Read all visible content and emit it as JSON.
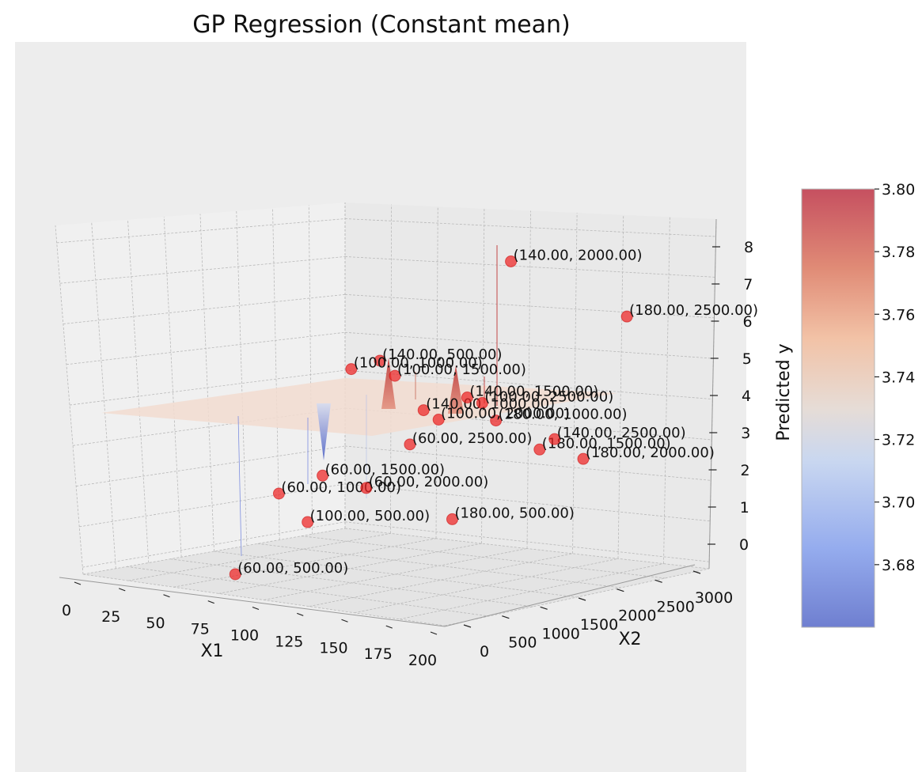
{
  "chart_data": {
    "type": "scatter",
    "subtype": "3d-surface-with-scatter",
    "title": "GP Regression (Constant mean)",
    "xlabel": "X1",
    "ylabel": "X2",
    "zlabel": "",
    "colorbar_label": "Predicted y",
    "colormap": "coolwarm",
    "grid": true,
    "xlim": [
      0,
      200
    ],
    "ylim": [
      0,
      3000
    ],
    "zlim": [
      0,
      8
    ],
    "x_ticks": [
      "0",
      "25",
      "50",
      "75",
      "100",
      "125",
      "150",
      "175",
      "200"
    ],
    "y_ticks": [
      "0",
      "500",
      "1000",
      "1500",
      "2000",
      "2500",
      "3000"
    ],
    "z_ticks": [
      "0",
      "1",
      "2",
      "3",
      "4",
      "5",
      "6",
      "7",
      "8"
    ],
    "colorbar_range": [
      3.66,
      3.8
    ],
    "colorbar_ticks": [
      "3.68",
      "3.70",
      "3.72",
      "3.74",
      "3.76",
      "3.78",
      "3.80"
    ],
    "surface_level": 3.74,
    "points": [
      {
        "x": 140,
        "y": 2000,
        "z": 8.5,
        "label": "(140.00, 2000.00)"
      },
      {
        "x": 180,
        "y": 2500,
        "z": 7.2,
        "label": "(180.00, 2500.00)"
      },
      {
        "x": 140,
        "y": 500,
        "z": 6.2,
        "label": "(140.00, 500.00)"
      },
      {
        "x": 100,
        "y": 1000,
        "z": 5.6,
        "label": "(100.00, 1000.00)"
      },
      {
        "x": 100,
        "y": 1500,
        "z": 5.3,
        "label": "(100.00, 1500.00)"
      },
      {
        "x": 140,
        "y": 1000,
        "z": 4.8,
        "label": "(140.00, 1000.00)"
      },
      {
        "x": 140,
        "y": 1500,
        "z": 5.0,
        "label": "(140.00, 1500.00)"
      },
      {
        "x": 180,
        "y": 1000,
        "z": 4.8,
        "label": "(180.00, 1000.00)"
      },
      {
        "x": 100,
        "y": 2500,
        "z": 4.3,
        "label": "(100.00, 2500.00)"
      },
      {
        "x": 100,
        "y": 2000,
        "z": 4.0,
        "label": "(100.00, 2000.00)"
      },
      {
        "x": 180,
        "y": 1500,
        "z": 3.9,
        "label": "(180.00, 1500.00)"
      },
      {
        "x": 140,
        "y": 2500,
        "z": 3.6,
        "label": "(140.00, 2500.00)"
      },
      {
        "x": 180,
        "y": 2000,
        "z": 3.5,
        "label": "(180.00, 2000.00)"
      },
      {
        "x": 60,
        "y": 2500,
        "z": 2.9,
        "label": "(60.00, 2500.00)"
      },
      {
        "x": 180,
        "y": 500,
        "z": 2.4,
        "label": "(180.00, 500.00)"
      },
      {
        "x": 60,
        "y": 1500,
        "z": 2.4,
        "label": "(60.00, 1500.00)"
      },
      {
        "x": 60,
        "y": 1000,
        "z": 2.1,
        "label": "(60.00, 1000.00)"
      },
      {
        "x": 100,
        "y": 500,
        "z": 1.8,
        "label": "(100.00, 500.00)"
      },
      {
        "x": 60,
        "y": 2000,
        "z": 1.9,
        "label": "(60.00, 2000.00)"
      },
      {
        "x": 60,
        "y": 500,
        "z": 0.2,
        "label": "(60.00, 500.00)"
      }
    ]
  }
}
